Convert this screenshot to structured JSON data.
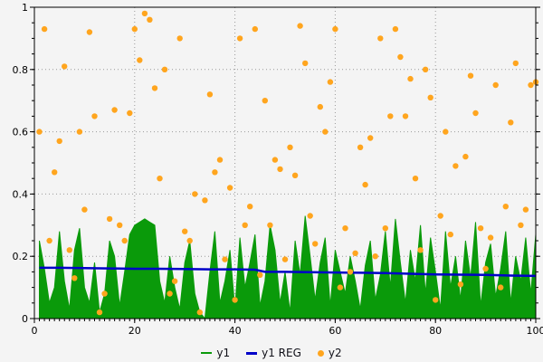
{
  "colors": {
    "page_bg": "#f4f4f4",
    "plot_bg": "#f4f4f4",
    "grid": "#9a9a9a",
    "axis": "#000000",
    "tick_label": "#000000"
  },
  "legend": {
    "position": "bottom-center"
  },
  "chart_data": {
    "type": "area",
    "title": "",
    "xlabel": "",
    "ylabel": "",
    "xlim": [
      0,
      100
    ],
    "ylim": [
      0,
      1
    ],
    "x_ticks": [
      0,
      20,
      40,
      60,
      80,
      100
    ],
    "y_ticks": [
      0,
      0.2,
      0.4,
      0.6,
      0.8,
      1
    ],
    "x_minor": 1,
    "y_minor": 0.05,
    "grid": true,
    "legend_position": "bottom",
    "x": [
      1,
      2,
      3,
      4,
      5,
      6,
      7,
      8,
      9,
      10,
      11,
      12,
      13,
      14,
      15,
      16,
      17,
      18,
      19,
      20,
      21,
      22,
      23,
      24,
      25,
      26,
      27,
      28,
      29,
      30,
      31,
      32,
      33,
      34,
      35,
      36,
      37,
      38,
      39,
      40,
      41,
      42,
      43,
      44,
      45,
      46,
      47,
      48,
      49,
      50,
      51,
      52,
      53,
      54,
      55,
      56,
      57,
      58,
      59,
      60,
      61,
      62,
      63,
      64,
      65,
      66,
      67,
      68,
      69,
      70,
      71,
      72,
      73,
      74,
      75,
      76,
      77,
      78,
      79,
      80,
      81,
      82,
      83,
      84,
      85,
      86,
      87,
      88,
      89,
      90,
      91,
      92,
      93,
      94,
      95,
      96,
      97,
      98,
      99,
      100
    ],
    "series": [
      {
        "name": "y1",
        "kind": "area",
        "color": "#0a9a0a",
        "values": [
          0.25,
          0.16,
          0.05,
          0.1,
          0.28,
          0.12,
          0.03,
          0.22,
          0.29,
          0.1,
          0.05,
          0.18,
          0.02,
          0.08,
          0.25,
          0.2,
          0.04,
          0.15,
          0.27,
          0.3,
          0.31,
          0.32,
          0.31,
          0.3,
          0.12,
          0.05,
          0.2,
          0.1,
          0.03,
          0.18,
          0.25,
          0.08,
          0.02,
          0.0,
          0.15,
          0.28,
          0.05,
          0.12,
          0.22,
          0.03,
          0.26,
          0.1,
          0.18,
          0.27,
          0.04,
          0.12,
          0.3,
          0.22,
          0.05,
          0.15,
          0.02,
          0.25,
          0.14,
          0.33,
          0.2,
          0.06,
          0.18,
          0.26,
          0.04,
          0.22,
          0.15,
          0.08,
          0.2,
          0.12,
          0.03,
          0.17,
          0.25,
          0.06,
          0.14,
          0.28,
          0.1,
          0.32,
          0.18,
          0.05,
          0.22,
          0.12,
          0.3,
          0.08,
          0.26,
          0.15,
          0.03,
          0.28,
          0.1,
          0.2,
          0.06,
          0.25,
          0.13,
          0.31,
          0.04,
          0.18,
          0.24,
          0.07,
          0.16,
          0.28,
          0.05,
          0.2,
          0.12,
          0.26,
          0.08,
          0.27
        ]
      },
      {
        "name": "y1 REG",
        "kind": "line",
        "color": "#0000c8",
        "x": [
          1,
          5,
          10,
          15,
          20,
          25,
          30,
          35,
          40,
          44,
          46,
          50,
          55,
          60,
          65,
          70,
          75,
          80,
          85,
          90,
          95,
          100
        ],
        "values": [
          0.163,
          0.163,
          0.162,
          0.161,
          0.16,
          0.16,
          0.159,
          0.158,
          0.158,
          0.157,
          0.15,
          0.15,
          0.149,
          0.148,
          0.147,
          0.146,
          0.144,
          0.142,
          0.141,
          0.14,
          0.138,
          0.137
        ]
      },
      {
        "name": "y2",
        "kind": "scatter",
        "color": "#ffa51e",
        "values": [
          0.6,
          0.93,
          0.25,
          0.47,
          0.57,
          0.81,
          0.22,
          0.13,
          0.6,
          0.35,
          0.92,
          0.65,
          0.02,
          0.08,
          0.32,
          0.67,
          0.3,
          0.25,
          0.66,
          0.93,
          0.83,
          0.98,
          0.96,
          0.74,
          0.45,
          0.8,
          0.08,
          0.12,
          0.9,
          0.28,
          0.25,
          0.4,
          0.02,
          0.38,
          0.72,
          0.47,
          0.51,
          0.19,
          0.42,
          0.06,
          0.9,
          0.3,
          0.36,
          0.93,
          0.14,
          0.7,
          0.3,
          0.51,
          0.48,
          0.19,
          0.55,
          0.46,
          0.94,
          0.82,
          0.33,
          0.24,
          0.68,
          0.6,
          0.76,
          0.93,
          0.1,
          0.29,
          0.15,
          0.21,
          0.55,
          0.43,
          0.58,
          0.2,
          0.9,
          0.29,
          0.65,
          0.93,
          0.84,
          0.65,
          0.77,
          0.45,
          0.22,
          0.8,
          0.71,
          0.06,
          0.33,
          0.6,
          0.27,
          0.49,
          0.11,
          0.52,
          0.78,
          0.66,
          0.29,
          0.16,
          0.26,
          0.75,
          0.1,
          0.36,
          0.63,
          0.82,
          0.3,
          0.35,
          0.75,
          0.76
        ]
      }
    ]
  }
}
